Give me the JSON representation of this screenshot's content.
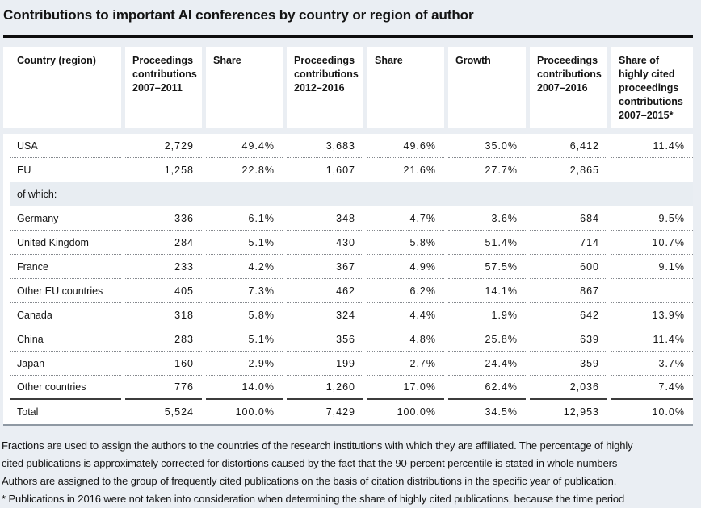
{
  "title": "Contributions to important AI conferences by country or region of author",
  "colors": {
    "page_background": "#eaeef3",
    "cell_background": "#ffffff",
    "section_band_background": "#e8edf2",
    "title_rule": "#0d0d0d",
    "dotted_separator": "#85898e",
    "total_separator": "#3c3c3c",
    "table_bottom_rule": "#8f99a3",
    "text": "#141414"
  },
  "chart_data": {
    "type": "table",
    "title": "Contributions to important AI conferences by country or region of author",
    "columns": [
      "Country (region)",
      "Proceedings contributions 2007–2011",
      "Share",
      "Proceedings contributions 2012–2016",
      "Share",
      "Growth",
      "Proceedings contributions 2007–2016",
      "Share of highly cited proceedings contributions 2007–2015*"
    ],
    "rows": [
      {
        "kind": "data",
        "label": "USA",
        "values": [
          "2,729",
          "49.4%",
          "3,683",
          "49.6%",
          "35.0%",
          "6,412",
          "11.4%"
        ],
        "separator": "dotted"
      },
      {
        "kind": "data",
        "label": "EU",
        "values": [
          "1,258",
          "22.8%",
          "1,607",
          "21.6%",
          "27.7%",
          "2,865",
          ""
        ],
        "separator": "none"
      },
      {
        "kind": "section",
        "label": "of which:"
      },
      {
        "kind": "data",
        "label": "Germany",
        "values": [
          "336",
          "6.1%",
          "348",
          "4.7%",
          "3.6%",
          "684",
          "9.5%"
        ],
        "separator": "dotted"
      },
      {
        "kind": "data",
        "label": "United Kingdom",
        "values": [
          "284",
          "5.1%",
          "430",
          "5.8%",
          "51.4%",
          "714",
          "10.7%"
        ],
        "separator": "dotted"
      },
      {
        "kind": "data",
        "label": "France",
        "values": [
          "233",
          "4.2%",
          "367",
          "4.9%",
          "57.5%",
          "600",
          "9.1%"
        ],
        "separator": "dotted"
      },
      {
        "kind": "data",
        "label": "Other EU countries",
        "values": [
          "405",
          "7.3%",
          "462",
          "6.2%",
          "14.1%",
          "867",
          ""
        ],
        "separator": "dotted"
      },
      {
        "kind": "data",
        "label": "Canada",
        "values": [
          "318",
          "5.8%",
          "324",
          "4.4%",
          "1.9%",
          "642",
          "13.9%"
        ],
        "separator": "dotted"
      },
      {
        "kind": "data",
        "label": "China",
        "values": [
          "283",
          "5.1%",
          "356",
          "4.8%",
          "25.8%",
          "639",
          "11.4%"
        ],
        "separator": "dotted"
      },
      {
        "kind": "data",
        "label": "Japan",
        "values": [
          "160",
          "2.9%",
          "199",
          "2.7%",
          "24.4%",
          "359",
          "3.7%"
        ],
        "separator": "dotted"
      },
      {
        "kind": "data",
        "label": "Other countries",
        "values": [
          "776",
          "14.0%",
          "1,260",
          "17.0%",
          "62.4%",
          "2,036",
          "7.4%"
        ],
        "separator": "solid"
      },
      {
        "kind": "data",
        "label": "Total",
        "values": [
          "5,524",
          "100.0%",
          "7,429",
          "100.0%",
          "34.5%",
          "12,953",
          "10.0%"
        ],
        "separator": "none"
      }
    ]
  },
  "footnotes": {
    "lines": [
      "Fractions are used to assign the authors to the countries of the research institutions with which they are affiliated. The percentage of highly",
      "cited publications is approximately corrected for distortions caused by the fact that the 90-percent percentile is stated in whole numbers",
      "Authors are assigned to the group of frequently cited publications on the basis of citation distributions in the specific year of publication.",
      "* Publications in 2016 were not taken into consideration when determining the share of highly cited publications, because the time period"
    ]
  }
}
